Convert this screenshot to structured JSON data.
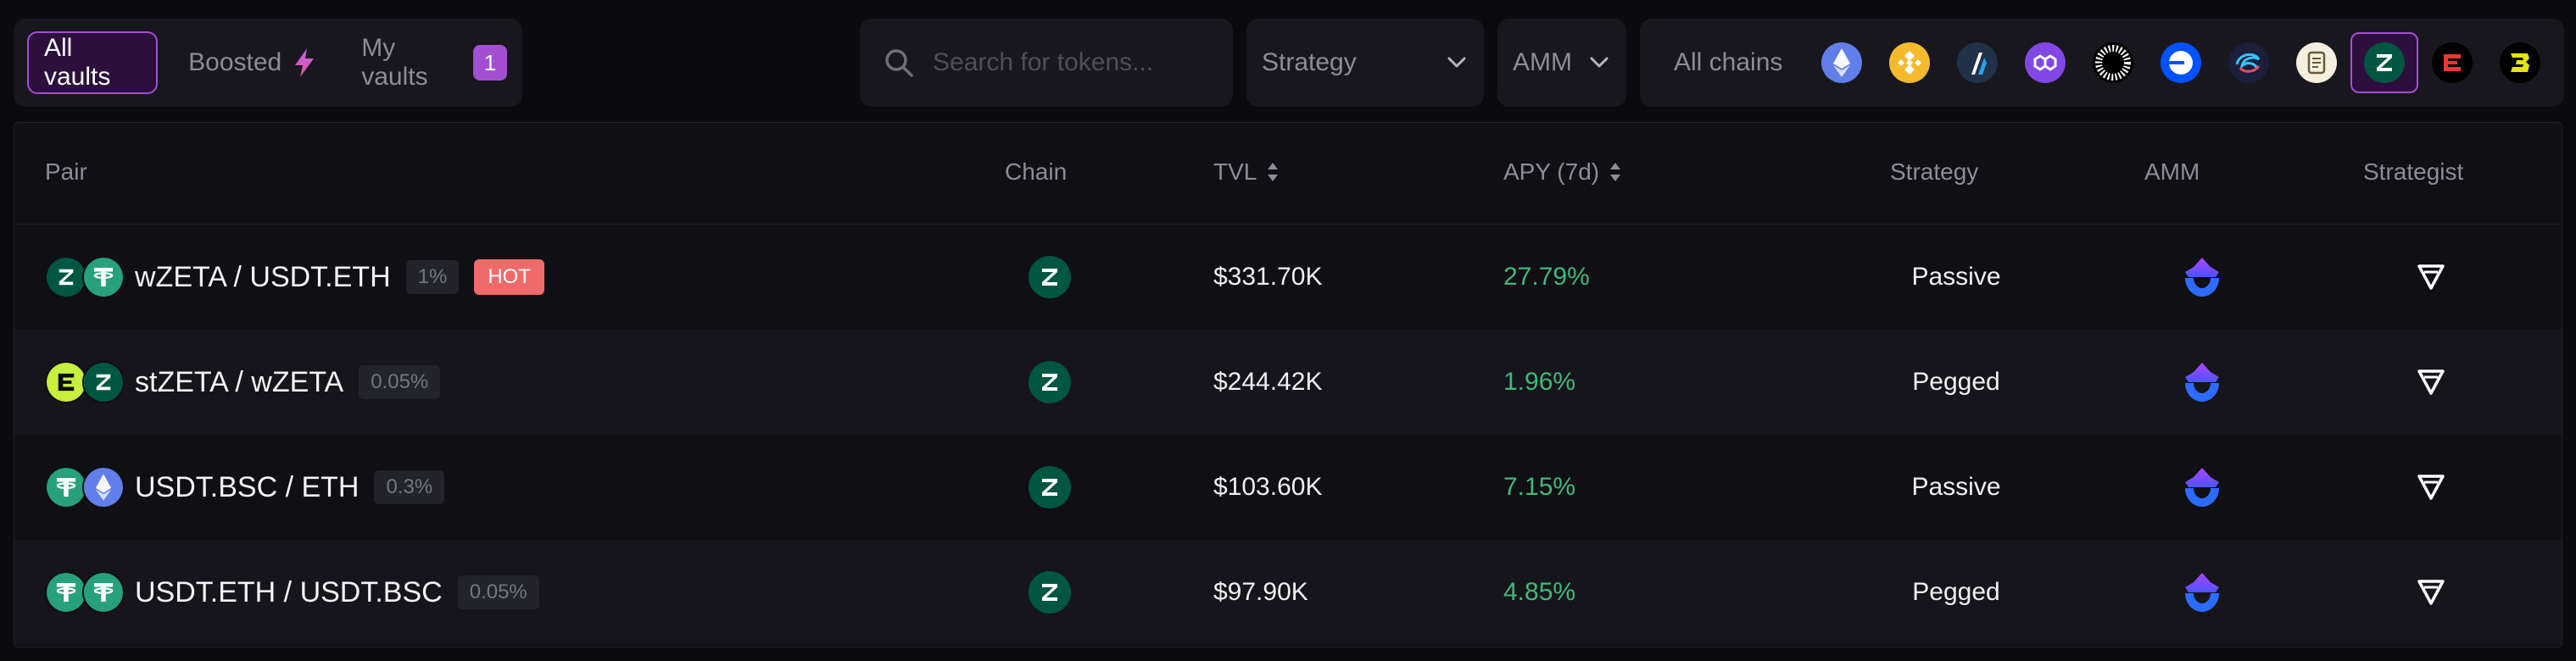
{
  "tabs": [
    {
      "label": "All vaults",
      "active": true
    },
    {
      "label": "Boosted",
      "icon": "lightning-icon"
    },
    {
      "label": "My vaults",
      "count": "1"
    }
  ],
  "search": {
    "placeholder": "Search for tokens..."
  },
  "filters": {
    "strategy": "Strategy",
    "amm": "AMM",
    "all_chains": "All chains"
  },
  "chains": [
    {
      "name": "ethereum-icon",
      "color": "#627eea"
    },
    {
      "name": "bnb-icon",
      "color": "#f3ba2f"
    },
    {
      "name": "arbitrum-icon",
      "color": "#213147"
    },
    {
      "name": "polygon-icon",
      "color": "#8247e5"
    },
    {
      "name": "sun-icon",
      "color": "#ffffff"
    },
    {
      "name": "base-icon",
      "color": "#0052ff"
    },
    {
      "name": "swirl-icon",
      "color": "#1b1f3a"
    },
    {
      "name": "scroll-icon",
      "color": "#f5efe0"
    },
    {
      "name": "zetachain-icon",
      "color": "#005741",
      "selected": true
    },
    {
      "name": "red-chain-icon",
      "color": "#e83a30"
    },
    {
      "name": "bitlayer-icon",
      "color": "#e7e30c"
    }
  ],
  "table": {
    "headers": {
      "pair": "Pair",
      "chain": "Chain",
      "tvl": "TVL",
      "apy": "APY (7d)",
      "strategy": "Strategy",
      "amm": "AMM",
      "strategist": "Strategist"
    },
    "rows": [
      {
        "pair": "wZETA / USDT.ETH",
        "fee": "1%",
        "hot": "HOT",
        "tvl": "$331.70K",
        "apy": "27.79%",
        "strategy": "Passive",
        "tokens": [
          "zeta-token-icon",
          "usdt-token-icon"
        ]
      },
      {
        "pair": "stZETA / wZETA",
        "fee": "0.05%",
        "tvl": "$244.42K",
        "apy": "1.96%",
        "strategy": "Pegged",
        "tokens": [
          "stzeta-token-icon",
          "zeta-token-icon"
        ]
      },
      {
        "pair": "USDT.BSC / ETH",
        "fee": "0.3%",
        "tvl": "$103.60K",
        "apy": "7.15%",
        "strategy": "Passive",
        "tokens": [
          "usdt-token-icon",
          "eth-token-icon"
        ]
      },
      {
        "pair": "USDT.ETH / USDT.BSC",
        "fee": "0.05%",
        "tvl": "$97.90K",
        "apy": "4.85%",
        "strategy": "Pegged",
        "tokens": [
          "usdt-token-icon",
          "usdt-token-icon"
        ]
      }
    ]
  },
  "colors": {
    "accent": "#a44fd1",
    "apy": "#3fb97a",
    "hot": "#ef6a6a",
    "zeta": "#005741",
    "usdt": "#26a17b"
  }
}
